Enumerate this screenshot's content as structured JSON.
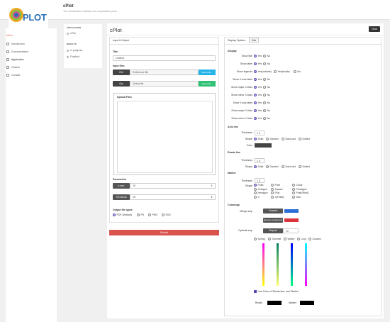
{
  "app": {
    "logo_text": "PLOT",
    "title": "cPlot",
    "subtitle": "The visualisation software for comparative plots"
  },
  "sidebar": {
    "menu_label": "Menu",
    "items": [
      {
        "label": "Introduction",
        "icon": "home-icon"
      },
      {
        "label": "Documentation",
        "icon": "book-icon"
      },
      {
        "label": "Application",
        "icon": "app-icon"
      },
      {
        "label": "Citation",
        "icon": "quote-icon"
      },
      {
        "label": "Contact",
        "icon": "mail-icon"
      }
    ]
  },
  "subnav": {
    "app_heading": "APPLICATION",
    "app_item": "cPlot",
    "results_heading": "RESULTS",
    "results_items": [
      "In progress",
      "Finished"
    ]
  },
  "main": {
    "title": "cPlot",
    "clear_label": "Clear"
  },
  "input": {
    "panel_title": "Input & Output",
    "title_label": "Title",
    "title_value": "Untitled",
    "files_label": "Input files",
    "ref_tag": "Ref",
    "ref_placeholder": "Reference file",
    "ref_button": "Select file...",
    "qry_tag": "Qry",
    "qry_placeholder": "Query file",
    "qry_button": "Select file...",
    "upload_label": "Upload Files",
    "params_label": "Parameters",
    "kmer_label": "k-mer",
    "kmer_value": "10",
    "threshold_label": "Threshold",
    "threshold_value": "10",
    "output_label": "Output file types",
    "output_options": [
      {
        "label": "PDF (Default)",
        "on": true
      },
      {
        "label": "PS",
        "on": false
      },
      {
        "label": "PNG",
        "on": false
      },
      {
        "label": "SVG",
        "on": false
      }
    ],
    "submit_label": "Submit"
  },
  "display": {
    "panel_title": "Display Options",
    "hide_label": "Hide",
    "display_label": "Display",
    "rows": [
      {
        "label": "Show title",
        "opts": [
          "Yes",
          "No"
        ]
      },
      {
        "label": "Show label",
        "opts": [
          "Yes",
          "No"
        ]
      },
      {
        "label": "Show legends",
        "opts": [
          "Yes(outside)",
          "Yes(inside)",
          "No"
        ]
      },
      {
        "label": "Show X-axis label",
        "opts": [
          "Yes",
          "No"
        ]
      },
      {
        "label": "Show major X-ticks",
        "opts": [
          "Yes",
          "No"
        ]
      },
      {
        "label": "Show minor X-ticks",
        "opts": [
          "Yes",
          "No"
        ]
      },
      {
        "label": "Show Y-axis label",
        "opts": [
          "Yes",
          "No"
        ]
      },
      {
        "label": "Show major Y-ticks",
        "opts": [
          "Yes",
          "No"
        ]
      },
      {
        "label": "Show minor Y-ticks",
        "opts": [
          "Yes",
          "No"
        ]
      }
    ],
    "axis_label": "Axis line",
    "thickness_label": "Thickness",
    "thickness_value": "1",
    "shape_label": "Shape",
    "shape_opts": [
      "Solid",
      "Dashed",
      "Dash-dot",
      "Dotted"
    ],
    "color_label": "Color",
    "axis_color": "#444444",
    "reads_label": "Reads line",
    "reads_thickness": "1",
    "marker_label": "Marker",
    "marker_thickness": "1",
    "marker_opts": [
      "Point",
      "Pixel",
      "Circle",
      "Octagon",
      "Square",
      "Pentagon",
      "Hexagon",
      "Plus",
      "Plus(Filled)",
      "X",
      "X(Filled)",
      "Star"
    ],
    "colormap_label": "Colormap",
    "merge_label": "Merge-step",
    "forward_label": "Forward",
    "forward_color": "#2b6fd6",
    "reverse_label": "Reverse complement",
    "reverse_color": "#d9343b",
    "optimal_label": "Optimal-step",
    "repeat_label": "Repeat",
    "repeat_value": "10",
    "cmap_opts": [
      "Spring",
      "Summer",
      "Winter",
      "Cool",
      "Custom"
    ],
    "use_color_label": "Use Color of 'Reads line' and 'Marker'",
    "reads_color_label": "Reads",
    "marker_color_label": "Marker",
    "reads_color": "#000000",
    "marker_color": "#000000"
  }
}
